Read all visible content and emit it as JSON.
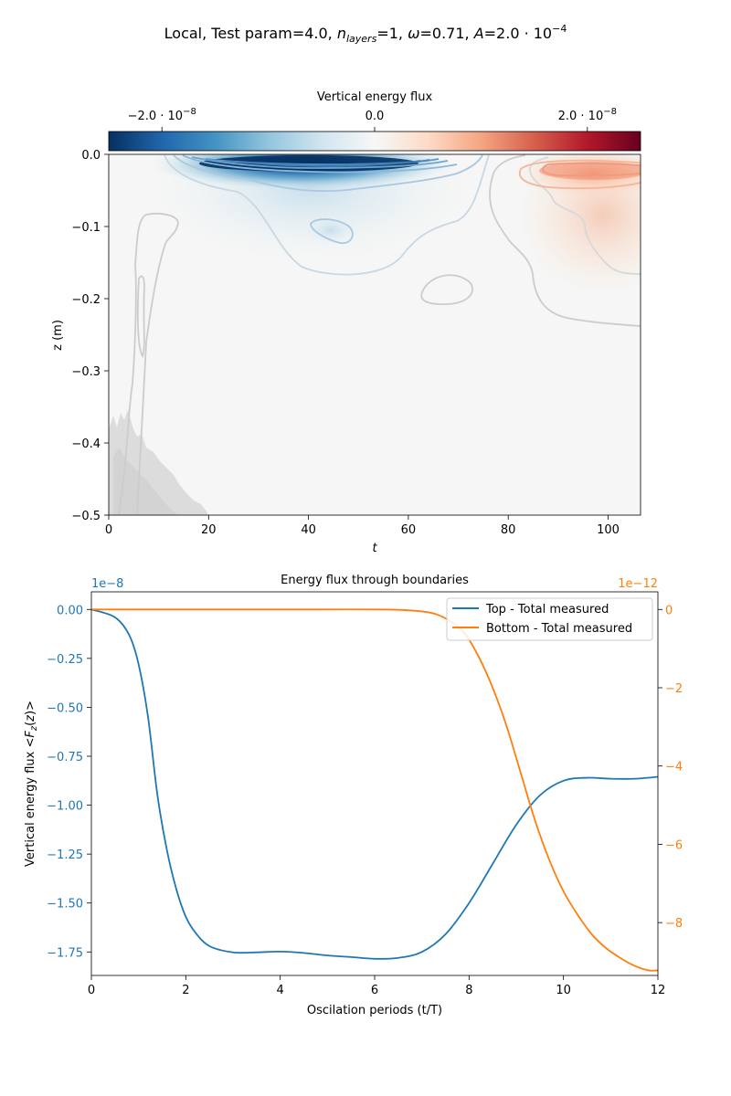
{
  "figure": {
    "suptitle": "Local, Test param=4.0, n_layers=1, ω=0.71, A=2.0·10⁻⁴",
    "suptitle_parts": {
      "prefix": "Local, Test param=4.0, ",
      "n": "n",
      "n_sub": "layers",
      "n_val": "=1, ",
      "omega": "ω",
      "omega_val": "=0.71, ",
      "a": "A",
      "a_val": "=2.0 · 10",
      "a_exp": "−4"
    }
  },
  "chart_data": [
    {
      "type": "heatmap",
      "title": "",
      "xlabel": "t",
      "ylabel": "z (m)",
      "xlim": [
        0,
        106.5
      ],
      "ylim": [
        -0.5,
        0.0
      ],
      "xticks": [
        0,
        20,
        40,
        60,
        80,
        100
      ],
      "yticks": [
        0.0,
        -0.1,
        -0.2,
        -0.3,
        -0.4,
        -0.5
      ],
      "xtick_labels": [
        "0",
        "20",
        "40",
        "60",
        "80",
        "100"
      ],
      "ytick_labels": [
        "0.0",
        "−0.1",
        "−0.2",
        "−0.3",
        "−0.4",
        "−0.5"
      ],
      "colormap": "RdBu_r",
      "colorbar": {
        "label": "Vertical energy flux",
        "orientation": "horizontal",
        "position": "top",
        "range": [
          -2.5e-08,
          2.5e-08
        ],
        "ticks": [
          -2e-08,
          0.0,
          2e-08
        ],
        "tick_labels": [
          {
            "mant": "−2.0 · 10",
            "exp": "−8"
          },
          {
            "mant": "0.0",
            "exp": ""
          },
          {
            "mant": "2.0 · 10",
            "exp": "−8"
          }
        ]
      },
      "features": [
        {
          "kind": "negative",
          "t": 50,
          "z": -0.012,
          "peak": -2.5e-08,
          "t_range": [
            10,
            88
          ],
          "z_range": [
            0.0,
            -0.17
          ]
        },
        {
          "kind": "negative",
          "t": 46,
          "z": -0.105,
          "peak": -4e-09
        },
        {
          "kind": "positive",
          "t": 96,
          "z": -0.025,
          "peak": 1.2e-08,
          "t_range": [
            80,
            106.5
          ],
          "z_range": [
            0.0,
            -0.17
          ]
        },
        {
          "kind": "noise",
          "t_range": [
            0,
            20
          ],
          "z_range": [
            -0.36,
            -0.5
          ]
        }
      ],
      "colors": {
        "background": "#f5f6f5",
        "contour_gray": "#cccccc",
        "noise_gray": "#d9d9d9"
      }
    },
    {
      "type": "line",
      "title": "Energy flux through boundaries",
      "xlabel": "Oscilation periods (t/T)",
      "ylabel": "Vertical energy flux  <F_z(z)>",
      "xlim": [
        0,
        12
      ],
      "ylim_left": [
        -1.87,
        0.09
      ],
      "ylim_right": [
        -9.35,
        0.45
      ],
      "left_scale": "1e−8",
      "right_scale": "1e−12",
      "xticks": [
        0,
        2,
        4,
        6,
        8,
        10,
        12
      ],
      "yticks_left": [
        0.0,
        -0.25,
        -0.5,
        -0.75,
        -1.0,
        -1.25,
        -1.5,
        -1.75
      ],
      "ytick_labels_left": [
        "0.00",
        "−0.25",
        "−0.50",
        "−0.75",
        "−1.00",
        "−1.25",
        "−1.50",
        "−1.75"
      ],
      "yticks_right": [
        0,
        -2,
        -4,
        -6,
        -8
      ],
      "ytick_labels_right": [
        "0",
        "−2",
        "−4",
        "−6",
        "−8"
      ],
      "legend_placement": "top-right",
      "series": [
        {
          "name": "Top - Total measured",
          "axis": "left",
          "color": "#1f77b4",
          "x": [
            0,
            0.5,
            0.8,
            1.0,
            1.2,
            1.4,
            1.6,
            1.8,
            2.0,
            2.2,
            2.5,
            3.0,
            3.5,
            4.0,
            4.5,
            5.0,
            5.5,
            6.0,
            6.5,
            7.0,
            7.5,
            8.0,
            8.5,
            9.0,
            9.5,
            10.0,
            10.5,
            11.0,
            11.5,
            12.0
          ],
          "y": [
            0.0,
            -0.04,
            -0.13,
            -0.28,
            -0.55,
            -0.95,
            -1.23,
            -1.43,
            -1.57,
            -1.65,
            -1.72,
            -1.752,
            -1.752,
            -1.748,
            -1.755,
            -1.768,
            -1.776,
            -1.785,
            -1.78,
            -1.75,
            -1.66,
            -1.5,
            -1.3,
            -1.1,
            -0.95,
            -0.875,
            -0.86,
            -0.865,
            -0.865,
            -0.855
          ]
        },
        {
          "name": "Bottom - Total measured",
          "axis": "right",
          "color": "#ff7f0e",
          "x": [
            0,
            1,
            2,
            3,
            4,
            5,
            6,
            6.5,
            7.0,
            7.3,
            7.6,
            7.9,
            8.2,
            8.5,
            8.8,
            9.1,
            9.4,
            9.7,
            10.0,
            10.3,
            10.6,
            10.9,
            11.2,
            11.5,
            11.8,
            12.0
          ],
          "y": [
            0,
            0,
            0,
            0,
            0,
            0,
            0,
            -0.01,
            -0.05,
            -0.12,
            -0.3,
            -0.6,
            -1.2,
            -2.0,
            -3.0,
            -4.2,
            -5.4,
            -6.4,
            -7.2,
            -7.8,
            -8.3,
            -8.65,
            -8.9,
            -9.1,
            -9.22,
            -9.22
          ]
        }
      ]
    }
  ]
}
